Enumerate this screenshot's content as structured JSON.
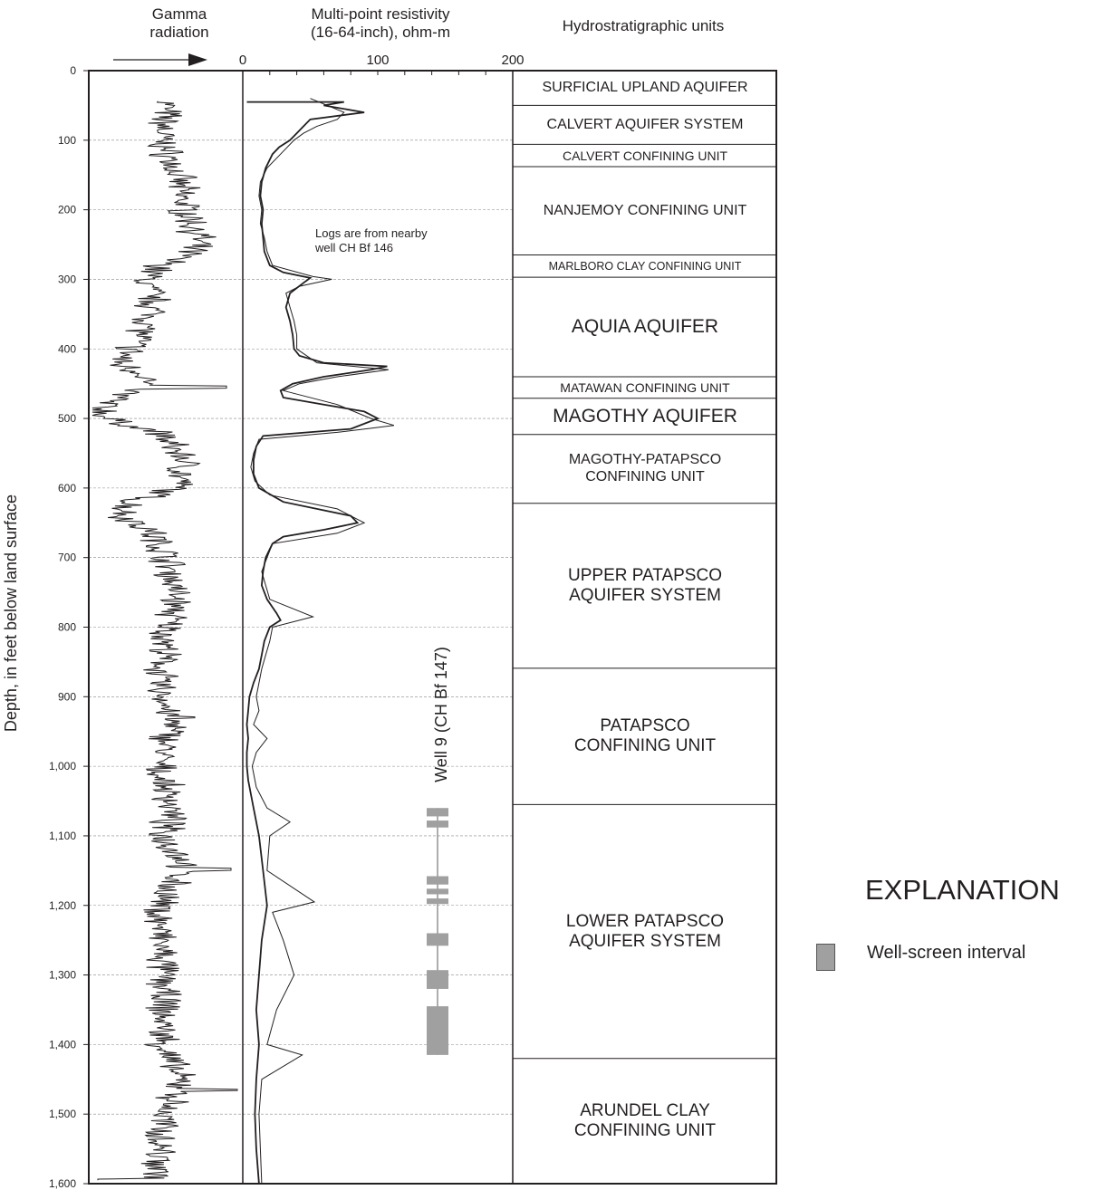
{
  "headers": {
    "gamma": "Gamma\nradiation",
    "resistivity": "Multi-point resistivity\n(16-64-inch), ohm-m",
    "units": "Hydrostratigraphic units"
  },
  "y_axis_title": "Depth, in feet below land surface",
  "note": "Logs are from nearby\nwell CH Bf 146",
  "well_label": "Well 9  (CH Bf 147)",
  "explanation": {
    "title": "EXPLANATION",
    "items": [
      {
        "label": "Well-screen interval",
        "color": "#a0a0a0"
      }
    ]
  },
  "colors": {
    "line": "#231f20",
    "screen": "#a0a0a0",
    "grid": "#888888"
  },
  "chart_data": {
    "type": "line",
    "y_axis": {
      "label": "Depth, in feet below land surface",
      "ylim": [
        0,
        1600
      ],
      "inverted": true,
      "ticks": [
        "0",
        "100",
        "200",
        "300",
        "400",
        "500",
        "600",
        "700",
        "800",
        "900",
        "1,000",
        "1,100",
        "1,200",
        "1,300",
        "1,400",
        "1,500",
        "1,600"
      ]
    },
    "resistivity_axis": {
      "label": "Multi-point resistivity (16-64-inch), ohm-m",
      "xlim": [
        0,
        200
      ],
      "ticks": [
        "0",
        "100",
        "200"
      ]
    },
    "gamma_axis": {
      "label": "Gamma radiation",
      "scale": "relative, increasing to the right"
    },
    "series": [
      {
        "name": "Resistivity, 64-inch",
        "style": "bold",
        "points": [
          [
            45,
            3
          ],
          [
            45,
            75
          ],
          [
            50,
            60
          ],
          [
            60,
            90
          ],
          [
            70,
            50
          ],
          [
            80,
            45
          ],
          [
            90,
            40
          ],
          [
            100,
            35
          ],
          [
            110,
            27
          ],
          [
            120,
            22
          ],
          [
            140,
            17
          ],
          [
            160,
            14
          ],
          [
            180,
            13
          ],
          [
            200,
            15
          ],
          [
            220,
            14
          ],
          [
            240,
            15
          ],
          [
            260,
            16
          ],
          [
            280,
            20
          ],
          [
            290,
            30
          ],
          [
            298,
            50
          ],
          [
            305,
            45
          ],
          [
            320,
            35
          ],
          [
            340,
            32
          ],
          [
            360,
            35
          ],
          [
            380,
            37
          ],
          [
            400,
            38
          ],
          [
            410,
            42
          ],
          [
            420,
            60
          ],
          [
            425,
            107
          ],
          [
            430,
            95
          ],
          [
            440,
            60
          ],
          [
            450,
            37
          ],
          [
            460,
            28
          ],
          [
            470,
            30
          ],
          [
            480,
            60
          ],
          [
            490,
            90
          ],
          [
            500,
            100
          ],
          [
            515,
            80
          ],
          [
            525,
            15
          ],
          [
            540,
            10
          ],
          [
            560,
            8
          ],
          [
            580,
            8
          ],
          [
            600,
            12
          ],
          [
            620,
            30
          ],
          [
            640,
            80
          ],
          [
            650,
            85
          ],
          [
            660,
            60
          ],
          [
            670,
            30
          ],
          [
            680,
            22
          ],
          [
            700,
            17
          ],
          [
            720,
            15
          ],
          [
            740,
            14
          ],
          [
            760,
            18
          ],
          [
            780,
            25
          ],
          [
            790,
            28
          ],
          [
            800,
            20
          ],
          [
            820,
            16
          ],
          [
            840,
            14
          ],
          [
            860,
            12
          ],
          [
            880,
            8
          ],
          [
            900,
            5
          ],
          [
            920,
            4
          ],
          [
            940,
            3
          ],
          [
            960,
            4
          ],
          [
            980,
            3
          ],
          [
            1000,
            3
          ],
          [
            1020,
            4
          ],
          [
            1050,
            7
          ],
          [
            1080,
            10
          ],
          [
            1100,
            12
          ],
          [
            1150,
            15
          ],
          [
            1200,
            18
          ],
          [
            1250,
            14
          ],
          [
            1300,
            12
          ],
          [
            1350,
            10
          ],
          [
            1400,
            12
          ],
          [
            1450,
            10
          ],
          [
            1500,
            9
          ],
          [
            1550,
            10
          ],
          [
            1600,
            12
          ]
        ]
      },
      {
        "name": "Resistivity, 16-inch",
        "style": "thin",
        "points": [
          [
            40,
            50
          ],
          [
            60,
            75
          ],
          [
            70,
            70
          ],
          [
            80,
            55
          ],
          [
            90,
            45
          ],
          [
            100,
            38
          ],
          [
            120,
            28
          ],
          [
            140,
            18
          ],
          [
            160,
            13
          ],
          [
            180,
            12
          ],
          [
            200,
            14
          ],
          [
            220,
            13
          ],
          [
            240,
            16
          ],
          [
            260,
            18
          ],
          [
            280,
            22
          ],
          [
            296,
            52
          ],
          [
            300,
            66
          ],
          [
            310,
            42
          ],
          [
            320,
            32
          ],
          [
            340,
            35
          ],
          [
            360,
            38
          ],
          [
            380,
            40
          ],
          [
            400,
            40
          ],
          [
            420,
            55
          ],
          [
            430,
            108
          ],
          [
            440,
            70
          ],
          [
            450,
            42
          ],
          [
            460,
            30
          ],
          [
            480,
            70
          ],
          [
            500,
            95
          ],
          [
            510,
            112
          ],
          [
            520,
            70
          ],
          [
            530,
            12
          ],
          [
            550,
            8
          ],
          [
            570,
            6
          ],
          [
            590,
            9
          ],
          [
            610,
            20
          ],
          [
            630,
            70
          ],
          [
            650,
            90
          ],
          [
            665,
            70
          ],
          [
            680,
            22
          ],
          [
            700,
            18
          ],
          [
            720,
            14
          ],
          [
            740,
            17
          ],
          [
            760,
            20
          ],
          [
            785,
            52
          ],
          [
            800,
            22
          ],
          [
            820,
            20
          ],
          [
            840,
            17
          ],
          [
            860,
            14
          ],
          [
            880,
            12
          ],
          [
            900,
            10
          ],
          [
            920,
            12
          ],
          [
            940,
            8
          ],
          [
            960,
            18
          ],
          [
            980,
            10
          ],
          [
            1000,
            7
          ],
          [
            1030,
            10
          ],
          [
            1060,
            18
          ],
          [
            1080,
            35
          ],
          [
            1100,
            20
          ],
          [
            1150,
            18
          ],
          [
            1195,
            53
          ],
          [
            1210,
            22
          ],
          [
            1250,
            30
          ],
          [
            1300,
            38
          ],
          [
            1350,
            25
          ],
          [
            1400,
            18
          ],
          [
            1415,
            44
          ],
          [
            1450,
            14
          ],
          [
            1500,
            12
          ],
          [
            1550,
            13
          ],
          [
            1600,
            14
          ]
        ]
      }
    ],
    "units": [
      {
        "name": "SURFICIAL UPLAND AQUIFER",
        "top": 0,
        "bottom": 50
      },
      {
        "name": "CALVERT AQUIFER SYSTEM",
        "top": 50,
        "bottom": 106
      },
      {
        "name": "CALVERT CONFINING UNIT",
        "top": 106,
        "bottom": 138
      },
      {
        "name": "NANJEMOY CONFINING UNIT",
        "top": 138,
        "bottom": 265
      },
      {
        "name": "MARLBORO CLAY CONFINING UNIT",
        "top": 265,
        "bottom": 297
      },
      {
        "name": "AQUIA AQUIFER",
        "top": 297,
        "bottom": 440
      },
      {
        "name": "MATAWAN CONFINING UNIT",
        "top": 440,
        "bottom": 471
      },
      {
        "name": "MAGOTHY AQUIFER",
        "top": 471,
        "bottom": 523
      },
      {
        "name": "MAGOTHY-PATAPSCO\nCONFINING UNIT",
        "top": 523,
        "bottom": 622
      },
      {
        "name": "UPPER PATAPSCO\nAQUIFER SYSTEM",
        "top": 622,
        "bottom": 859
      },
      {
        "name": "PATAPSCO\nCONFINING UNIT",
        "top": 859,
        "bottom": 1055
      },
      {
        "name": "LOWER PATAPSCO\nAQUIFER SYSTEM",
        "top": 1055,
        "bottom": 1420
      },
      {
        "name": "ARUNDEL CLAY\nCONFINING UNIT",
        "top": 1420,
        "bottom": 1600
      }
    ],
    "well_screens": [
      [
        1060,
        1072
      ],
      [
        1078,
        1088
      ],
      [
        1158,
        1170
      ],
      [
        1176,
        1184
      ],
      [
        1190,
        1198
      ],
      [
        1240,
        1258
      ],
      [
        1293,
        1320
      ],
      [
        1345,
        1415
      ]
    ],
    "well_casing": {
      "top": 1060,
      "bottom": 1415
    }
  }
}
